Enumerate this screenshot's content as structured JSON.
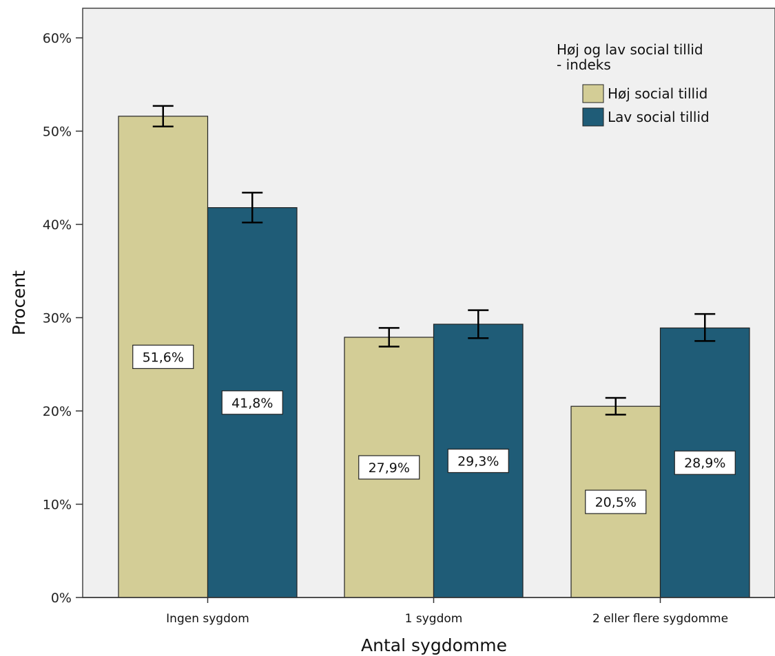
{
  "chart_data": {
    "type": "bar",
    "title": "",
    "xlabel": "Antal sygdomme",
    "ylabel": "Procent",
    "ylim": [
      0,
      60
    ],
    "yticks": [
      0,
      10,
      20,
      30,
      40,
      50,
      60
    ],
    "ytick_labels": [
      "0%",
      "10%",
      "20%",
      "30%",
      "40%",
      "50%",
      "60%"
    ],
    "categories": [
      "Ingen sygdom",
      "1 sygdom",
      "2 eller flere sygdomme"
    ],
    "legend": {
      "title": "Høj og lav social tillid - indeks",
      "title_lines": [
        "Høj og lav social tillid",
        "- indeks"
      ],
      "placement": "top-right"
    },
    "grid": false,
    "series": [
      {
        "name": "Høj social tillid",
        "color": "#d3cd96",
        "values": [
          51.6,
          27.9,
          20.5
        ],
        "labels": [
          "51,6%",
          "27,9%",
          "20,5%"
        ],
        "error_low": [
          50.5,
          26.9,
          19.6
        ],
        "error_high": [
          52.7,
          28.9,
          21.4
        ]
      },
      {
        "name": "Lav social tillid",
        "color": "#1f5c77",
        "values": [
          41.8,
          29.3,
          28.9
        ],
        "labels": [
          "41,8%",
          "29,3%",
          "28,9%"
        ],
        "error_low": [
          40.2,
          27.8,
          27.5
        ],
        "error_high": [
          43.4,
          30.8,
          30.4
        ]
      }
    ]
  }
}
